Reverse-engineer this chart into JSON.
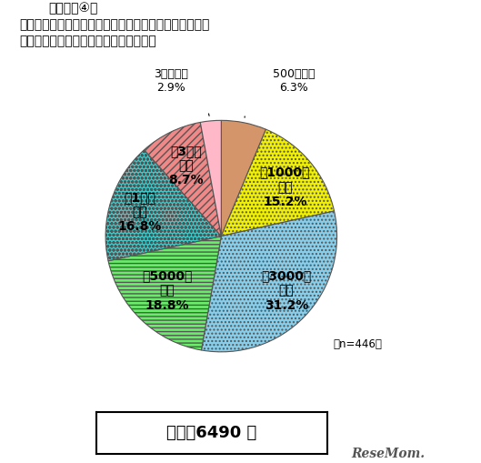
{
  "title_line1": "（グラフ④）",
  "title_line2": "「ごく一般の家庭では、この程度が平均的な義援・支援",
  "title_line3": "金の金額ではないか」と感じる金額は？",
  "values": [
    6.3,
    15.2,
    31.2,
    18.8,
    16.8,
    8.7,
    2.9
  ],
  "colors": [
    "#D4956A",
    "#F0F000",
    "#87CEEB",
    "#66EE66",
    "#40C8C8",
    "#F08888",
    "#FFB8C8"
  ],
  "hatch_patterns": [
    "",
    "....",
    "....",
    "----",
    "oooo",
    "////",
    ""
  ],
  "inside_labels": [
    null,
    [
      "～1000円",
      "未満",
      "15.2%"
    ],
    [
      "～3000円",
      "未満",
      "31.2%"
    ],
    [
      "～5000円",
      "未満",
      "18.8%"
    ],
    [
      "～1万円",
      "未満",
      "16.8%"
    ],
    [
      "～3万円",
      "未満",
      "8.7%"
    ],
    null
  ],
  "outside_labels": [
    [
      "500円未満",
      "6.3%"
    ],
    null,
    null,
    null,
    null,
    null,
    [
      "3万円以上",
      "2.9%"
    ]
  ],
  "average_text": "平均：6490 円",
  "n_text": "（n=446）",
  "background_color": "#ffffff"
}
